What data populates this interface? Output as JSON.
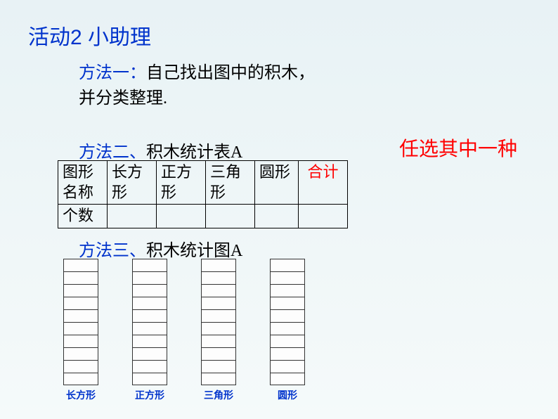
{
  "title": "活动2 小助理",
  "method1": {
    "label": "方法一：",
    "line1_rest": "自己找出图中的积木，",
    "line2": "并分类整理."
  },
  "method2": {
    "label": "方法二、",
    "text": "积木统计表A"
  },
  "choose_one": "任选其中一种",
  "table": {
    "row1": {
      "c0": "图形名称",
      "c1": "长方形",
      "c2": "正方形",
      "c3": "三角形",
      "c4": "圆形",
      "c5": "合计"
    },
    "row2": {
      "c0": "个数",
      "c1": "",
      "c2": "",
      "c3": "",
      "c4": "",
      "c5": ""
    }
  },
  "method3": {
    "label": "方法三、",
    "text": "积木统计图A"
  },
  "chart": {
    "bar_cells": 10,
    "labels": {
      "b0": "长方形",
      "b1": "正方形",
      "b2": "三角形",
      "b3": "圆形"
    },
    "colors": {
      "label_color": "#0033cc",
      "cell_border": "#333333",
      "cell_bg": "#fdfdfd"
    }
  },
  "colors": {
    "title": "#0033cc",
    "label": "#0033cc",
    "text": "#000000",
    "highlight": "#ff0000",
    "bg_top": "#e8f2f5",
    "bg_bottom": "#f5fafa"
  }
}
